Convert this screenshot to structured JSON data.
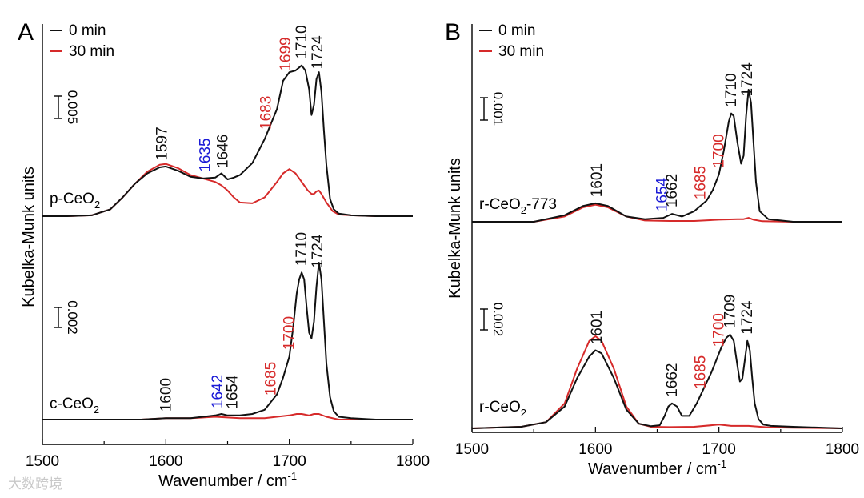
{
  "colors": {
    "black": "#111111",
    "red": "#d62a2a",
    "blue": "#1a1ad6"
  },
  "watermark": "大数跨境",
  "chart_data": [
    {
      "type": "line",
      "panel": "A",
      "xlabel": "Wavenumber / cm",
      "xlabel_sup": "-1",
      "ylabel": "Kubelka-Munk units",
      "xlim": [
        1500,
        1800
      ],
      "xticks": [
        1500,
        1600,
        1700,
        1800
      ],
      "legend": [
        {
          "label": "0 min",
          "color": "black"
        },
        {
          "label": "30 min",
          "color": "red"
        }
      ],
      "subplots": [
        {
          "sample": "p-CeO",
          "sample_sub": "2",
          "sample_suffix": "",
          "scale_bar": "0.005",
          "baseline": 0.0,
          "series": [
            {
              "name": "0 min",
              "color": "black",
              "x": [
                1500,
                1520,
                1540,
                1555,
                1565,
                1575,
                1585,
                1595,
                1600,
                1610,
                1620,
                1630,
                1640,
                1645,
                1650,
                1655,
                1660,
                1670,
                1680,
                1690,
                1695,
                1700,
                1705,
                1710,
                1713,
                1716,
                1718,
                1720,
                1722,
                1724,
                1726,
                1728,
                1730,
                1733,
                1736,
                1740,
                1750,
                1770,
                1800
              ],
              "y": [
                0.0,
                0.0,
                0.001,
                0.008,
                0.022,
                0.038,
                0.05,
                0.057,
                0.058,
                0.053,
                0.046,
                0.044,
                0.045,
                0.05,
                0.043,
                0.045,
                0.048,
                0.062,
                0.09,
                0.125,
                0.158,
                0.168,
                0.17,
                0.176,
                0.17,
                0.148,
                0.118,
                0.13,
                0.16,
                0.168,
                0.145,
                0.1,
                0.06,
                0.02,
                0.008,
                0.003,
                0.001,
                0.0,
                0.0
              ]
            },
            {
              "name": "30 min",
              "color": "red",
              "x": [
                1500,
                1520,
                1540,
                1555,
                1565,
                1575,
                1585,
                1595,
                1600,
                1610,
                1620,
                1630,
                1640,
                1645,
                1650,
                1655,
                1660,
                1670,
                1680,
                1690,
                1695,
                1700,
                1705,
                1710,
                1715,
                1718,
                1720,
                1722,
                1724,
                1726,
                1730,
                1735,
                1740,
                1750,
                1770,
                1800
              ],
              "y": [
                0.0,
                0.0,
                0.001,
                0.008,
                0.022,
                0.038,
                0.052,
                0.06,
                0.061,
                0.056,
                0.048,
                0.044,
                0.04,
                0.036,
                0.03,
                0.022,
                0.016,
                0.015,
                0.022,
                0.04,
                0.05,
                0.055,
                0.05,
                0.04,
                0.03,
                0.026,
                0.026,
                0.029,
                0.03,
                0.026,
                0.016,
                0.006,
                0.002,
                0.001,
                0.0,
                0.0
              ]
            }
          ],
          "annotations": [
            {
              "text": "1597",
              "x": 1597,
              "color": "black"
            },
            {
              "text": "1635",
              "x": 1632,
              "color": "blue"
            },
            {
              "text": "1646",
              "x": 1646,
              "color": "black"
            },
            {
              "text": "1683",
              "x": 1681,
              "color": "red"
            },
            {
              "text": "1699",
              "x": 1697,
              "color": "red"
            },
            {
              "text": "1710",
              "x": 1710,
              "color": "black"
            },
            {
              "text": "1724",
              "x": 1723,
              "color": "black"
            }
          ]
        },
        {
          "sample": "c-CeO",
          "sample_sub": "2",
          "sample_suffix": "",
          "scale_bar": "0.002",
          "baseline": 0.0,
          "series": [
            {
              "name": "0 min",
              "color": "black",
              "x": [
                1500,
                1550,
                1580,
                1600,
                1620,
                1630,
                1640,
                1645,
                1650,
                1655,
                1660,
                1670,
                1680,
                1690,
                1695,
                1700,
                1703,
                1706,
                1708,
                1710,
                1712,
                1714,
                1716,
                1718,
                1720,
                1722,
                1724,
                1726,
                1728,
                1730,
                1733,
                1736,
                1740,
                1750,
                1770,
                1800
              ],
              "y": [
                0.0,
                0.0,
                0.0,
                0.001,
                0.001,
                0.002,
                0.003,
                0.004,
                0.003,
                0.003,
                0.003,
                0.004,
                0.007,
                0.018,
                0.03,
                0.045,
                0.065,
                0.09,
                0.1,
                0.105,
                0.1,
                0.08,
                0.062,
                0.058,
                0.07,
                0.095,
                0.112,
                0.1,
                0.07,
                0.04,
                0.016,
                0.006,
                0.002,
                0.001,
                0.0,
                0.0
              ]
            },
            {
              "name": "30 min",
              "color": "red",
              "x": [
                1500,
                1550,
                1580,
                1600,
                1620,
                1640,
                1660,
                1680,
                1690,
                1700,
                1706,
                1710,
                1716,
                1720,
                1724,
                1730,
                1740,
                1760,
                1800
              ],
              "y": [
                0.0,
                0.0,
                0.0,
                0.001,
                0.001,
                0.002,
                0.001,
                0.001,
                0.002,
                0.003,
                0.004,
                0.004,
                0.003,
                0.004,
                0.004,
                0.002,
                0.0,
                0.0,
                0.0
              ]
            }
          ],
          "annotations": [
            {
              "text": "1600",
              "x": 1600,
              "color": "black"
            },
            {
              "text": "1642",
              "x": 1642,
              "color": "blue"
            },
            {
              "text": "1654",
              "x": 1654,
              "color": "black"
            },
            {
              "text": "1685",
              "x": 1685,
              "color": "red"
            },
            {
              "text": "1700",
              "x": 1700,
              "color": "red"
            },
            {
              "text": "1710",
              "x": 1710,
              "color": "black"
            },
            {
              "text": "1724",
              "x": 1723,
              "color": "black"
            }
          ]
        }
      ]
    },
    {
      "type": "line",
      "panel": "B",
      "xlabel": "Wavenumber / cm",
      "xlabel_sup": "-1",
      "ylabel": "Kubelka-Munk units",
      "xlim": [
        1500,
        1800
      ],
      "xticks": [
        1500,
        1600,
        1700,
        1800
      ],
      "legend": [
        {
          "label": "0 min",
          "color": "black"
        },
        {
          "label": "30 min",
          "color": "red"
        }
      ],
      "subplots": [
        {
          "sample": "r-CeO",
          "sample_sub": "2",
          "sample_suffix": "-773",
          "scale_bar": "0.001",
          "baseline": 0.0,
          "series": [
            {
              "name": "0 min",
              "color": "black",
              "x": [
                1500,
                1550,
                1575,
                1590,
                1600,
                1610,
                1625,
                1640,
                1655,
                1662,
                1670,
                1680,
                1690,
                1695,
                1700,
                1704,
                1708,
                1710,
                1712,
                1715,
                1718,
                1720,
                1722,
                1724,
                1726,
                1728,
                1730,
                1733,
                1740,
                1760,
                1800
              ],
              "y": [
                0.0,
                0.0,
                0.0025,
                0.006,
                0.007,
                0.006,
                0.002,
                0.001,
                0.0015,
                0.003,
                0.002,
                0.004,
                0.008,
                0.012,
                0.018,
                0.027,
                0.038,
                0.041,
                0.04,
                0.03,
                0.022,
                0.025,
                0.04,
                0.05,
                0.045,
                0.03,
                0.015,
                0.004,
                0.001,
                0.0,
                0.0
              ]
            },
            {
              "name": "30 min",
              "color": "red",
              "x": [
                1500,
                1550,
                1575,
                1590,
                1600,
                1610,
                1625,
                1640,
                1660,
                1680,
                1700,
                1715,
                1720,
                1724,
                1728,
                1735,
                1760,
                1800
              ],
              "y": [
                0.0,
                0.0,
                0.002,
                0.0055,
                0.0065,
                0.0055,
                0.002,
                0.0005,
                0.0003,
                0.0003,
                0.0008,
                0.001,
                0.001,
                0.0015,
                0.0008,
                0.0002,
                0.0,
                0.0
              ]
            }
          ],
          "annotations": [
            {
              "text": "1601",
              "x": 1601,
              "color": "black"
            },
            {
              "text": "1654",
              "x": 1654,
              "color": "blue"
            },
            {
              "text": "1662",
              "x": 1662,
              "color": "black"
            },
            {
              "text": "1685",
              "x": 1685,
              "color": "red"
            },
            {
              "text": "1700",
              "x": 1700,
              "color": "red"
            },
            {
              "text": "1710",
              "x": 1710,
              "color": "black"
            },
            {
              "text": "1724",
              "x": 1723,
              "color": "black"
            }
          ]
        },
        {
          "sample": "r-CeO",
          "sample_sub": "2",
          "sample_suffix": "",
          "scale_bar": "0.002",
          "baseline": 0.0,
          "series": [
            {
              "name": "0 min",
              "color": "black",
              "x": [
                1500,
                1540,
                1560,
                1575,
                1585,
                1595,
                1600,
                1605,
                1615,
                1625,
                1635,
                1645,
                1652,
                1656,
                1659,
                1662,
                1666,
                1670,
                1676,
                1682,
                1688,
                1694,
                1698,
                1702,
                1706,
                1709,
                1712,
                1715,
                1717,
                1719,
                1721,
                1723,
                1725,
                1727,
                1729,
                1732,
                1736,
                1742,
                1760,
                1800
              ],
              "y": [
                0.0,
                0.0005,
                0.002,
                0.007,
                0.016,
                0.023,
                0.025,
                0.024,
                0.016,
                0.006,
                0.0015,
                0.0007,
                0.001,
                0.004,
                0.007,
                0.008,
                0.007,
                0.004,
                0.004,
                0.008,
                0.013,
                0.018,
                0.022,
                0.026,
                0.029,
                0.03,
                0.028,
                0.02,
                0.015,
                0.016,
                0.022,
                0.028,
                0.025,
                0.016,
                0.008,
                0.003,
                0.0012,
                0.0008,
                0.0005,
                0.0
              ]
            },
            {
              "name": "30 min",
              "color": "red",
              "x": [
                1500,
                1540,
                1560,
                1575,
                1585,
                1595,
                1600,
                1605,
                1615,
                1625,
                1635,
                1645,
                1660,
                1680,
                1700,
                1710,
                1724,
                1740,
                1760,
                1800
              ],
              "y": [
                0.0,
                0.0005,
                0.002,
                0.008,
                0.019,
                0.028,
                0.0295,
                0.028,
                0.019,
                0.007,
                0.0015,
                0.0005,
                0.0004,
                0.0005,
                0.0012,
                0.0008,
                0.0008,
                0.0003,
                0.0002,
                0.0
              ]
            }
          ],
          "annotations": [
            {
              "text": "1601",
              "x": 1601,
              "color": "black"
            },
            {
              "text": "1662",
              "x": 1662,
              "color": "black"
            },
            {
              "text": "1685",
              "x": 1685,
              "color": "red"
            },
            {
              "text": "1700",
              "x": 1700,
              "color": "red"
            },
            {
              "text": "1709",
              "x": 1709,
              "color": "black"
            },
            {
              "text": "1724",
              "x": 1723,
              "color": "black"
            }
          ]
        }
      ]
    }
  ]
}
